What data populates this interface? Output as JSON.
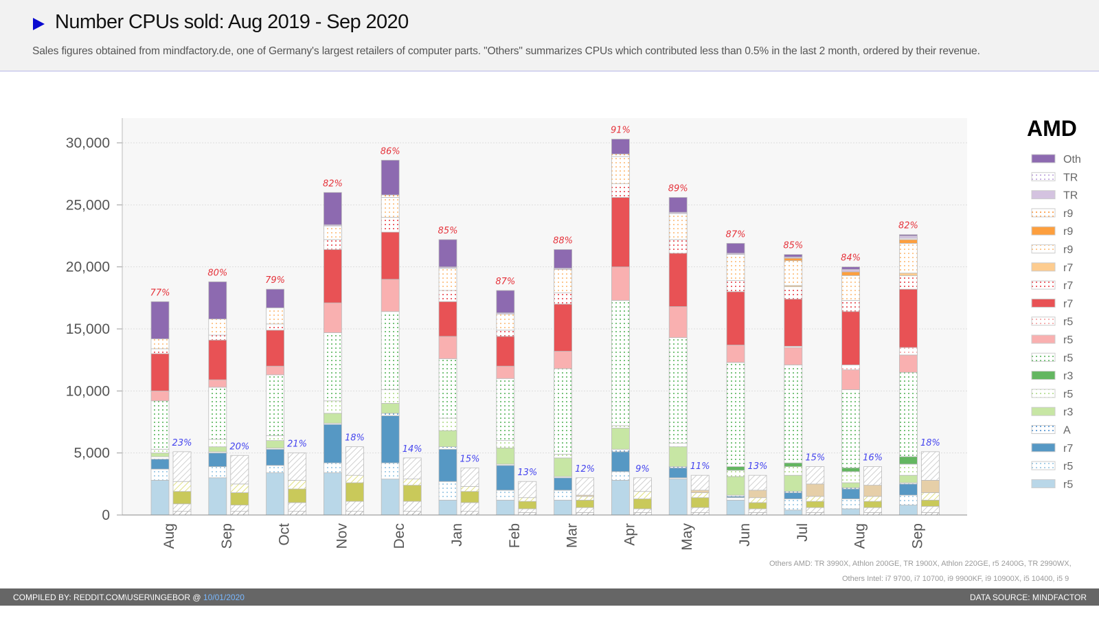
{
  "header": {
    "title": "Number CPUs sold: Aug 2019 - Sep 2020",
    "subtitle": "Sales figures obtained from mindfactory.de, one of Germany's largest retailers of computer parts. \"Others\" summarizes CPUs which contributed less than 0.5% in the last 2 month, ordered by their revenue."
  },
  "notes": {
    "others_amd": "Others AMD: TR 3990X, Athlon 200GE, TR 1900X, Athlon 220GE, r5 2400G, TR 2990WX,",
    "others_intel": "Others Intel: i7 9700, i7 10700, i9 9900KF, i9 10900X, i5 10400, i5 9"
  },
  "footer": {
    "compiled_prefix": "COMPILED BY: REDDIT.COM\\USER\\INGEBOR @ ",
    "compiled_date": "10/01/2020",
    "source": "DATA SOURCE: MINDFACTOR"
  },
  "chart_data": {
    "type": "bar",
    "stacked": true,
    "grid": true,
    "ylim": [
      0,
      32000
    ],
    "yticks": [
      "0",
      "5,000",
      "10,000",
      "15,000",
      "20,000",
      "25,000",
      "30,000"
    ],
    "ytick_values": [
      0,
      5000,
      10000,
      15000,
      20000,
      25000,
      30000
    ],
    "categories": [
      "Aug",
      "Sep",
      "Oct",
      "Nov",
      "Dec",
      "Jan",
      "Feb",
      "Mar",
      "Apr",
      "May",
      "Jun",
      "Jul",
      "Aug",
      "Sep"
    ],
    "legend_title": "AMD",
    "legend_position": "right",
    "amd_share": [
      "77%",
      "80%",
      "79%",
      "82%",
      "86%",
      "85%",
      "87%",
      "88%",
      "91%",
      "89%",
      "87%",
      "85%",
      "84%",
      "82%"
    ],
    "intel_share": [
      "23%",
      "20%",
      "21%",
      "18%",
      "14%",
      "15%",
      "13%",
      "12%",
      "9%",
      "11%",
      "13%",
      "15%",
      "16%",
      "18%"
    ],
    "amd_series": [
      {
        "name": "r5",
        "color": "#b9d7e8",
        "pattern": "solid",
        "values": [
          2800,
          3000,
          3400,
          3400,
          2900,
          1200,
          1200,
          1200,
          2800,
          2900,
          1200,
          400,
          500,
          800
        ]
      },
      {
        "name": "r5",
        "color": "#8cc0e0",
        "pattern": "dotted",
        "values": [
          900,
          900,
          600,
          800,
          1300,
          1500,
          800,
          800,
          700,
          100,
          200,
          900,
          800,
          800
        ]
      },
      {
        "name": "r7",
        "color": "#5698c4",
        "pattern": "solid",
        "values": [
          800,
          1100,
          1300,
          3100,
          3800,
          2600,
          2000,
          1000,
          1600,
          800,
          100,
          500,
          800,
          900
        ]
      },
      {
        "name": "A",
        "color": "#3f88cc",
        "pattern": "dotted",
        "values": [
          200,
          100,
          100,
          100,
          200,
          200,
          100,
          100,
          200,
          100,
          100,
          100,
          100,
          100
        ]
      },
      {
        "name": "r3",
        "color": "#c7e6a4",
        "pattern": "solid",
        "values": [
          300,
          400,
          600,
          800,
          800,
          1300,
          1300,
          1500,
          1700,
          1600,
          1500,
          1300,
          400,
          600
        ]
      },
      {
        "name": "r5",
        "color": "#a8d880",
        "pattern": "dotted",
        "values": [
          300,
          600,
          400,
          1000,
          1100,
          1000,
          600,
          300,
          200,
          300,
          500,
          700,
          900,
          900
        ]
      },
      {
        "name": "r3",
        "color": "#63b660",
        "pattern": "solid",
        "values": [
          0,
          0,
          0,
          0,
          0,
          0,
          0,
          0,
          0,
          0,
          300,
          300,
          300,
          600
        ]
      },
      {
        "name": "r5",
        "color": "#4caf50",
        "pattern": "dotted",
        "values": [
          3900,
          4200,
          4900,
          5500,
          6300,
          4800,
          5000,
          6900,
          10100,
          8500,
          8400,
          7900,
          6300,
          6800
        ]
      },
      {
        "name": "r5",
        "color": "#f9b0b0",
        "pattern": "solid",
        "values": [
          800,
          600,
          700,
          2400,
          2600,
          1800,
          1000,
          1400,
          2700,
          2500,
          1400,
          1400,
          1600,
          1400
        ]
      },
      {
        "name": "r5",
        "color": "#f49a9a",
        "pattern": "dotted",
        "values": [
          0,
          0,
          0,
          0,
          0,
          0,
          0,
          0,
          0,
          0,
          0,
          100,
          400,
          600
        ]
      },
      {
        "name": "r7",
        "color": "#e85255",
        "pattern": "solid",
        "values": [
          3000,
          3200,
          2900,
          4300,
          3800,
          2800,
          2400,
          3800,
          5600,
          4300,
          4300,
          3800,
          4300,
          4700
        ]
      },
      {
        "name": "r7",
        "color": "#e5323a",
        "pattern": "dotted",
        "values": [
          400,
          400,
          500,
          800,
          1200,
          900,
          500,
          900,
          1100,
          1100,
          900,
          1000,
          900,
          1100
        ]
      },
      {
        "name": "r7",
        "color": "#fdcc8f",
        "pattern": "solid",
        "values": [
          0,
          0,
          0,
          0,
          0,
          0,
          0,
          0,
          0,
          0,
          0,
          100,
          0,
          200
        ]
      },
      {
        "name": "r9",
        "color": "#fdb56b",
        "pattern": "dotted",
        "values": [
          800,
          1300,
          1300,
          1100,
          1600,
          1800,
          1300,
          1900,
          2200,
          2100,
          2100,
          2000,
          2000,
          2400
        ]
      },
      {
        "name": "r9",
        "color": "#fd9f3e",
        "pattern": "solid",
        "values": [
          0,
          0,
          0,
          0,
          0,
          0,
          0,
          0,
          0,
          0,
          0,
          200,
          300,
          300
        ]
      },
      {
        "name": "r9",
        "color": "#fd8d2a",
        "pattern": "dotted",
        "values": [
          0,
          0,
          0,
          0,
          200,
          0,
          0,
          0,
          200,
          0,
          0,
          0,
          0,
          100
        ]
      },
      {
        "name": "TR",
        "color": "#d4c3e0",
        "pattern": "solid",
        "values": [
          0,
          0,
          0,
          100,
          0,
          100,
          100,
          100,
          0,
          100,
          100,
          100,
          200,
          200
        ]
      },
      {
        "name": "TR",
        "color": "#b799d8",
        "pattern": "dotted",
        "values": [
          0,
          0,
          0,
          0,
          0,
          0,
          0,
          0,
          0,
          0,
          0,
          0,
          0,
          0
        ]
      },
      {
        "name": "Oth",
        "color": "#8d6ab0",
        "pattern": "solid",
        "values": [
          3000,
          3000,
          1500,
          2600,
          2800,
          2200,
          1800,
          1500,
          1200,
          1200,
          800,
          200,
          200,
          100
        ]
      }
    ],
    "intel_series": [
      {
        "color": "#9a9a9a",
        "pattern": "hatched",
        "values": [
          300,
          300,
          300,
          300,
          300,
          300,
          200,
          200,
          200,
          200,
          200,
          200,
          200,
          200
        ]
      },
      {
        "color": "#bdbdbd",
        "pattern": "hatched",
        "values": [
          600,
          500,
          700,
          800,
          800,
          700,
          300,
          400,
          300,
          400,
          300,
          400,
          400,
          500
        ]
      },
      {
        "color": "#c9c95a",
        "pattern": "solid",
        "values": [
          1000,
          1000,
          1100,
          1500,
          1300,
          900,
          600,
          600,
          800,
          800,
          500,
          500,
          500,
          500
        ]
      },
      {
        "color": "#d8d860",
        "pattern": "hatched",
        "values": [
          800,
          700,
          700,
          600,
          500,
          400,
          300,
          300,
          600,
          400,
          400,
          400,
          400,
          600
        ]
      },
      {
        "color": "#e6cfa8",
        "pattern": "solid",
        "values": [
          0,
          0,
          0,
          0,
          0,
          0,
          0,
          100,
          0,
          200,
          600,
          1000,
          900,
          1000
        ]
      },
      {
        "color": "#c4c4c4",
        "pattern": "hatched",
        "values": [
          2400,
          2300,
          2200,
          2300,
          1700,
          1500,
          1300,
          1400,
          1100,
          1200,
          1200,
          1400,
          1500,
          2300
        ]
      }
    ]
  }
}
